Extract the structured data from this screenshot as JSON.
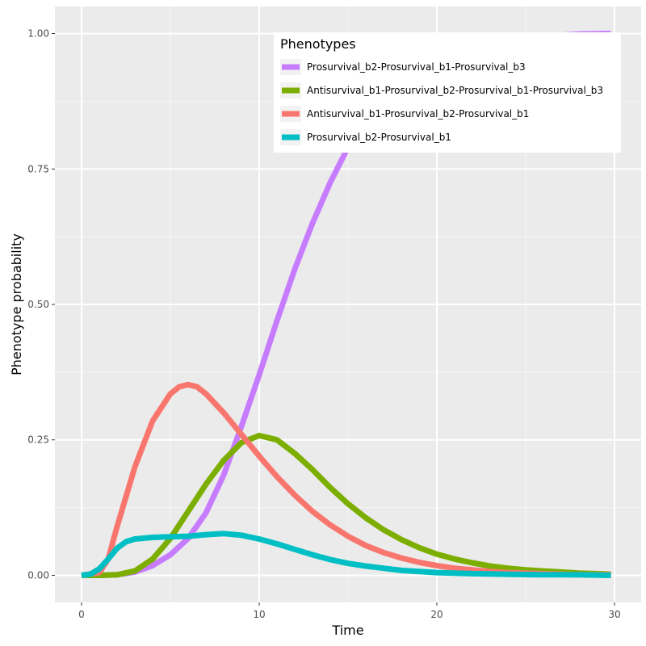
{
  "chart_data": {
    "type": "line",
    "title": "",
    "xlabel": "Time",
    "ylabel": "Phenotype probability",
    "xlim": [
      -1.5,
      31.5
    ],
    "ylim": [
      -0.05,
      1.05
    ],
    "x_ticks": [
      0,
      10,
      20,
      30
    ],
    "x_tick_labels": [
      "0",
      "10",
      "20",
      "30"
    ],
    "y_ticks": [
      0,
      0.25,
      0.5,
      0.75,
      1.0
    ],
    "y_tick_labels": [
      "0.00",
      "0.25",
      "0.50",
      "0.75",
      "1.00"
    ],
    "grid": true,
    "legend": {
      "title": "Phenotypes",
      "position": "top-right inside"
    },
    "series": [
      {
        "name": "Prosurvival_b2-Prosurvival_b1-Prosurvival_b3",
        "color": "#C77CFF",
        "x": [
          0,
          1,
          2,
          3,
          4,
          5,
          6,
          7,
          8,
          9,
          10,
          11,
          12,
          13,
          14,
          15,
          16,
          17,
          18,
          19,
          20,
          22,
          24,
          26,
          28,
          29.8
        ],
        "y": [
          0,
          0,
          0.001,
          0.006,
          0.018,
          0.038,
          0.068,
          0.115,
          0.185,
          0.275,
          0.37,
          0.47,
          0.565,
          0.65,
          0.725,
          0.79,
          0.84,
          0.88,
          0.91,
          0.935,
          0.955,
          0.975,
          0.988,
          0.995,
          0.999,
          1.0
        ]
      },
      {
        "name": "Antisurvival_b1-Prosurvival_b2-Prosurvival_b1-Prosurvival_b3",
        "color": "#7CAE00",
        "x": [
          0,
          1,
          2,
          3,
          4,
          5,
          6,
          7,
          8,
          9,
          10,
          11,
          12,
          13,
          14,
          15,
          16,
          17,
          18,
          19,
          20,
          21,
          22,
          23,
          24,
          25,
          26,
          27,
          28,
          29,
          29.8
        ],
        "y": [
          0,
          0,
          0.001,
          0.008,
          0.03,
          0.068,
          0.118,
          0.168,
          0.212,
          0.245,
          0.258,
          0.25,
          0.225,
          0.195,
          0.162,
          0.132,
          0.106,
          0.084,
          0.066,
          0.051,
          0.039,
          0.03,
          0.023,
          0.017,
          0.013,
          0.01,
          0.008,
          0.006,
          0.004,
          0.003,
          0.002
        ]
      },
      {
        "name": "Antisurvival_b1-Prosurvival_b2-Prosurvival_b1",
        "color": "#F8766D",
        "x": [
          0,
          1,
          1.5,
          2,
          3,
          4,
          5,
          5.5,
          6,
          6.5,
          7,
          8,
          9,
          10,
          11,
          12,
          13,
          14,
          15,
          16,
          17,
          18,
          19,
          20,
          21,
          22,
          23,
          24,
          25,
          26,
          27,
          28,
          29,
          29.8
        ],
        "y": [
          0,
          0.005,
          0.03,
          0.09,
          0.2,
          0.285,
          0.335,
          0.348,
          0.352,
          0.348,
          0.335,
          0.3,
          0.26,
          0.22,
          0.182,
          0.148,
          0.118,
          0.093,
          0.072,
          0.055,
          0.042,
          0.032,
          0.024,
          0.018,
          0.013,
          0.01,
          0.007,
          0.005,
          0.004,
          0.003,
          0.002,
          0.001,
          0.001,
          0.001
        ]
      },
      {
        "name": "Prosurvival_b2-Prosurvival_b1",
        "color": "#00BFC4",
        "x": [
          0,
          0.5,
          1,
          1.5,
          2,
          2.5,
          3,
          4,
          5,
          6,
          7,
          8,
          9,
          10,
          11,
          12,
          13,
          14,
          15,
          16,
          17,
          18,
          19,
          20,
          21,
          22,
          24,
          26,
          28,
          29.8
        ],
        "y": [
          0,
          0.002,
          0.012,
          0.03,
          0.05,
          0.062,
          0.067,
          0.07,
          0.071,
          0.072,
          0.075,
          0.077,
          0.074,
          0.067,
          0.058,
          0.048,
          0.038,
          0.029,
          0.022,
          0.017,
          0.013,
          0.009,
          0.007,
          0.005,
          0.004,
          0.003,
          0.002,
          0.001,
          0.001,
          0.0
        ]
      }
    ]
  }
}
